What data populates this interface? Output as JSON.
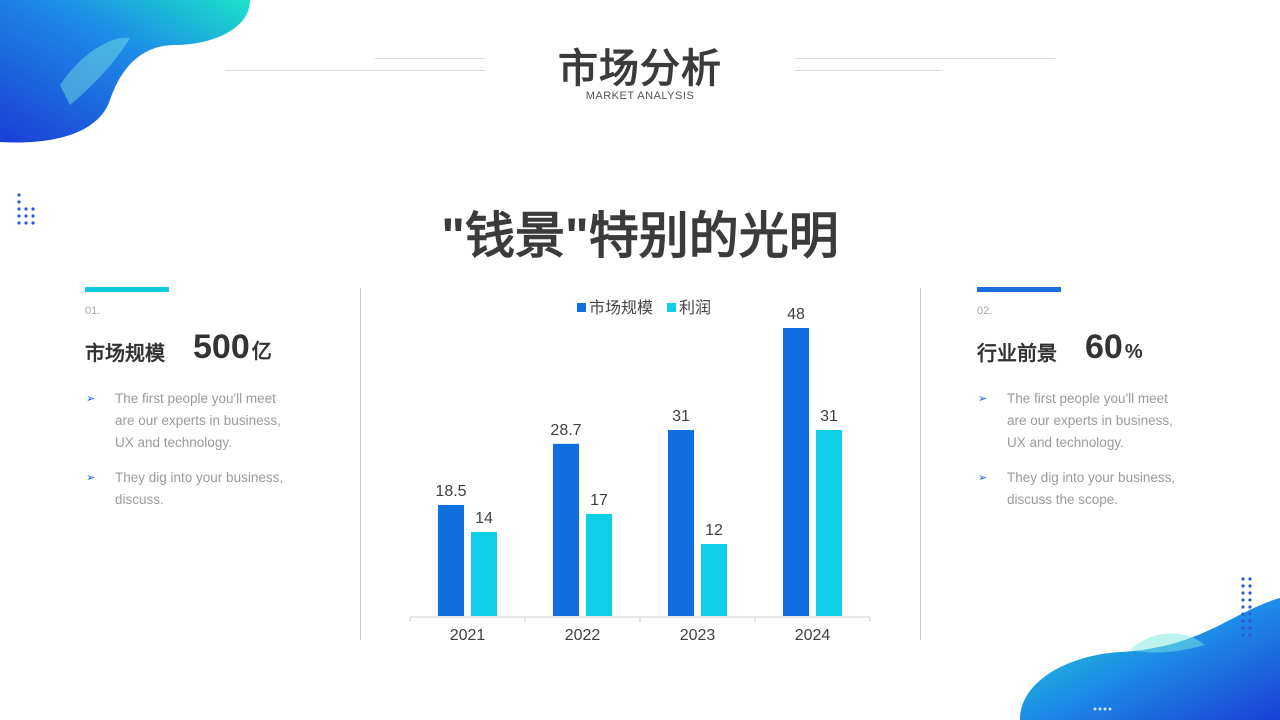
{
  "header": {
    "title": "市场分析",
    "subtitle": "MARKET ANALYSIS",
    "headline": "\"钱景\"特别的光明"
  },
  "left_panel": {
    "number": "01.",
    "title": "市场规模",
    "value": "500",
    "unit": "亿",
    "bullets": [
      [
        "The first people you'll meet",
        "are our experts in business,",
        "UX  and technology."
      ],
      [
        "They dig into your business,",
        "discuss."
      ]
    ]
  },
  "right_panel": {
    "number": "02.",
    "title": "行业前景",
    "value": "60",
    "unit": "%",
    "bullets": [
      [
        "The first people you'll meet",
        "are our experts in business,",
        "UX  and technology."
      ],
      [
        "They dig into your business,",
        "discuss the scope."
      ]
    ]
  },
  "colors": {
    "series1": "#0f6ee0",
    "series2": "#0fcfe8",
    "accent_left": "#13c9e0",
    "accent_right": "#1a6fdc"
  },
  "chart_data": {
    "type": "bar",
    "categories": [
      "2021",
      "2022",
      "2023",
      "2024"
    ],
    "series": [
      {
        "name": "市场规模",
        "values": [
          18.5,
          28.7,
          31,
          48
        ]
      },
      {
        "name": "利润",
        "values": [
          14,
          17,
          12,
          31
        ]
      }
    ],
    "ylim": [
      0,
      50
    ],
    "grid": false,
    "legend": "top-center",
    "data_labels": true
  }
}
